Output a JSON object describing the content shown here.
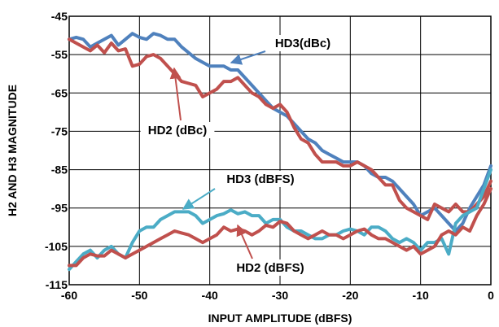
{
  "chart_data": {
    "type": "line",
    "title": "",
    "xlabel": "INPUT AMPLITUDE (dBFS)",
    "ylabel": "H2 AND H3 MAGNITUDE",
    "xlim": [
      -60,
      0
    ],
    "ylim": [
      -115,
      -45
    ],
    "x_ticks": [
      "-60",
      "-50",
      "-40",
      "-30",
      "-20",
      "-10",
      "0"
    ],
    "y_ticks": [
      "-45",
      "-55",
      "-65",
      "-75",
      "-85",
      "-95",
      "-105",
      "-115"
    ],
    "grid": true,
    "series": [
      {
        "name": "HD3(dBc)",
        "color": "#4f81bd",
        "points": [
          [
            -60,
            -51
          ],
          [
            -59,
            -50.5
          ],
          [
            -58,
            -51
          ],
          [
            -57,
            -53
          ],
          [
            -56,
            -52
          ],
          [
            -55,
            -51
          ],
          [
            -54,
            -50
          ],
          [
            -53,
            -52.5
          ],
          [
            -52,
            -51
          ],
          [
            -51,
            -49.5
          ],
          [
            -50,
            -50.5
          ],
          [
            -49,
            -51
          ],
          [
            -48,
            -49.5
          ],
          [
            -47,
            -50
          ],
          [
            -46,
            -51
          ],
          [
            -45,
            -51
          ],
          [
            -44,
            -53
          ],
          [
            -43,
            -54.5
          ],
          [
            -42,
            -56
          ],
          [
            -41,
            -57
          ],
          [
            -40,
            -58
          ],
          [
            -39,
            -58
          ],
          [
            -38,
            -58
          ],
          [
            -37,
            -59
          ],
          [
            -36,
            -59
          ],
          [
            -35,
            -61
          ],
          [
            -34,
            -63
          ],
          [
            -33,
            -65
          ],
          [
            -32,
            -67
          ],
          [
            -31,
            -69
          ],
          [
            -30,
            -70
          ],
          [
            -29,
            -71
          ],
          [
            -28,
            -73
          ],
          [
            -27,
            -75
          ],
          [
            -26,
            -77
          ],
          [
            -25,
            -78
          ],
          [
            -24,
            -80
          ],
          [
            -23,
            -81
          ],
          [
            -22,
            -82
          ],
          [
            -21,
            -83
          ],
          [
            -20,
            -83
          ],
          [
            -19,
            -83
          ],
          [
            -18,
            -84
          ],
          [
            -17,
            -86
          ],
          [
            -16,
            -87
          ],
          [
            -15,
            -87
          ],
          [
            -14,
            -88
          ],
          [
            -13,
            -90
          ],
          [
            -12,
            -92
          ],
          [
            -11,
            -94
          ],
          [
            -10,
            -97
          ],
          [
            -9,
            -96
          ],
          [
            -8,
            -95
          ],
          [
            -7,
            -97
          ],
          [
            -6,
            -99
          ],
          [
            -5,
            -101
          ],
          [
            -4,
            -99
          ],
          [
            -3,
            -95
          ],
          [
            -2,
            -92
          ],
          [
            -1,
            -89
          ],
          [
            0,
            -84
          ]
        ]
      },
      {
        "name": "HD2 (dBc)",
        "color": "#c0504d",
        "points": [
          [
            -60,
            -51
          ],
          [
            -59,
            -52
          ],
          [
            -58,
            -53
          ],
          [
            -57,
            -54
          ],
          [
            -56,
            -52.5
          ],
          [
            -55,
            -54.5
          ],
          [
            -54,
            -52
          ],
          [
            -53,
            -54
          ],
          [
            -52,
            -53.5
          ],
          [
            -51,
            -58
          ],
          [
            -50,
            -57.5
          ],
          [
            -49,
            -55.5
          ],
          [
            -48,
            -55
          ],
          [
            -47,
            -56
          ],
          [
            -46,
            -58
          ],
          [
            -45,
            -60
          ],
          [
            -44,
            -62
          ],
          [
            -43,
            -62.5
          ],
          [
            -42,
            -63
          ],
          [
            -41,
            -66
          ],
          [
            -40,
            -65
          ],
          [
            -39,
            -64
          ],
          [
            -38,
            -62
          ],
          [
            -37,
            -62
          ],
          [
            -36,
            -61
          ],
          [
            -35,
            -63
          ],
          [
            -34,
            -65
          ],
          [
            -33,
            -66
          ],
          [
            -32,
            -68
          ],
          [
            -31,
            -69
          ],
          [
            -30,
            -68
          ],
          [
            -29,
            -70
          ],
          [
            -28,
            -74
          ],
          [
            -27,
            -77
          ],
          [
            -26,
            -78
          ],
          [
            -25,
            -81
          ],
          [
            -24,
            -83
          ],
          [
            -23,
            -83
          ],
          [
            -22,
            -83
          ],
          [
            -21,
            -84
          ],
          [
            -20,
            -84
          ],
          [
            -19,
            -83
          ],
          [
            -18,
            -84
          ],
          [
            -17,
            -85
          ],
          [
            -16,
            -87
          ],
          [
            -15,
            -89
          ],
          [
            -14,
            -89
          ],
          [
            -13,
            -93
          ],
          [
            -12,
            -95
          ],
          [
            -11,
            -96
          ],
          [
            -10,
            -97
          ],
          [
            -9,
            -98
          ],
          [
            -8,
            -94
          ],
          [
            -7,
            -95
          ],
          [
            -6,
            -96
          ],
          [
            -5,
            -94
          ],
          [
            -4,
            -96
          ],
          [
            -3,
            -96
          ],
          [
            -2,
            -94
          ],
          [
            -1,
            -92
          ],
          [
            0,
            -88
          ]
        ]
      },
      {
        "name": "HD3 (dBFS)",
        "color": "#4bacc6",
        "points": [
          [
            -60,
            -111
          ],
          [
            -59,
            -109
          ],
          [
            -58,
            -107
          ],
          [
            -57,
            -106
          ],
          [
            -56,
            -108
          ],
          [
            -55,
            -106
          ],
          [
            -54,
            -105
          ],
          [
            -53,
            -107
          ],
          [
            -52,
            -108
          ],
          [
            -51,
            -104
          ],
          [
            -50,
            -101
          ],
          [
            -49,
            -100
          ],
          [
            -48,
            -100
          ],
          [
            -47,
            -98
          ],
          [
            -46,
            -97
          ],
          [
            -45,
            -96
          ],
          [
            -44,
            -96
          ],
          [
            -43,
            -96
          ],
          [
            -42,
            -97
          ],
          [
            -41,
            -99
          ],
          [
            -40,
            -98
          ],
          [
            -39,
            -97
          ],
          [
            -38,
            -96.5
          ],
          [
            -37,
            -95.5
          ],
          [
            -36,
            -96.5
          ],
          [
            -35,
            -96
          ],
          [
            -34,
            -97
          ],
          [
            -33,
            -97
          ],
          [
            -32,
            -99
          ],
          [
            -31,
            -98
          ],
          [
            -30,
            -98
          ],
          [
            -29,
            -100
          ],
          [
            -28,
            -101
          ],
          [
            -27,
            -101
          ],
          [
            -26,
            -102
          ],
          [
            -25,
            -103
          ],
          [
            -24,
            -103
          ],
          [
            -23,
            -102
          ],
          [
            -22,
            -102
          ],
          [
            -21,
            -101
          ],
          [
            -20,
            -100.5
          ],
          [
            -19,
            -101
          ],
          [
            -18,
            -102
          ],
          [
            -17,
            -100
          ],
          [
            -16,
            -100
          ],
          [
            -15,
            -101
          ],
          [
            -14,
            -103
          ],
          [
            -13,
            -104
          ],
          [
            -12,
            -103
          ],
          [
            -11,
            -104
          ],
          [
            -10,
            -106
          ],
          [
            -9,
            -104
          ],
          [
            -8,
            -104
          ],
          [
            -7,
            -103
          ],
          [
            -6,
            -107
          ],
          [
            -5,
            -99
          ],
          [
            -4,
            -97
          ],
          [
            -3,
            -96
          ],
          [
            -2,
            -95
          ],
          [
            -1,
            -90
          ],
          [
            0,
            -85
          ]
        ]
      },
      {
        "name": "HD2 (dBFS)",
        "color": "#c0504d",
        "points": [
          [
            -60,
            -110
          ],
          [
            -59,
            -110
          ],
          [
            -58,
            -108
          ],
          [
            -57,
            -107
          ],
          [
            -56,
            -107.5
          ],
          [
            -55,
            -107.5
          ],
          [
            -54,
            -106
          ],
          [
            -53,
            -107
          ],
          [
            -52,
            -108
          ],
          [
            -51,
            -107
          ],
          [
            -50,
            -106
          ],
          [
            -49,
            -105
          ],
          [
            -48,
            -104
          ],
          [
            -47,
            -103
          ],
          [
            -46,
            -102
          ],
          [
            -45,
            -101
          ],
          [
            -44,
            -101.5
          ],
          [
            -43,
            -102
          ],
          [
            -42,
            -103
          ],
          [
            -41,
            -104
          ],
          [
            -40,
            -103
          ],
          [
            -39,
            -102
          ],
          [
            -38,
            -100
          ],
          [
            -37,
            -101
          ],
          [
            -36,
            -100.5
          ],
          [
            -35,
            -101
          ],
          [
            -34,
            -102
          ],
          [
            -33,
            -101
          ],
          [
            -32,
            -99.5
          ],
          [
            -31,
            -100
          ],
          [
            -30,
            -98.5
          ],
          [
            -29,
            -99
          ],
          [
            -28,
            -101
          ],
          [
            -27,
            -102
          ],
          [
            -26,
            -103
          ],
          [
            -25,
            -102
          ],
          [
            -24,
            -101
          ],
          [
            -23,
            -102
          ],
          [
            -22,
            -102
          ],
          [
            -21,
            -103
          ],
          [
            -20,
            -102
          ],
          [
            -19,
            -101
          ],
          [
            -18,
            -100.5
          ],
          [
            -17,
            -102
          ],
          [
            -16,
            -103
          ],
          [
            -15,
            -103
          ],
          [
            -14,
            -104
          ],
          [
            -13,
            -105
          ],
          [
            -12,
            -106
          ],
          [
            -11,
            -105
          ],
          [
            -10,
            -107
          ],
          [
            -9,
            -106
          ],
          [
            -8,
            -105
          ],
          [
            -7,
            -102
          ],
          [
            -6,
            -101
          ],
          [
            -5,
            -102
          ],
          [
            -4,
            -100
          ],
          [
            -3,
            -101
          ],
          [
            -2,
            -97
          ],
          [
            -1,
            -94
          ],
          [
            0,
            -90
          ]
        ]
      }
    ],
    "annotations": [
      {
        "label": "HD3(dBc)",
        "series": 0
      },
      {
        "label": "HD2 (dBc)",
        "series": 1
      },
      {
        "label": "HD3 (dBFS)",
        "series": 2
      },
      {
        "label": "HD2 (dBFS)",
        "series": 3
      }
    ]
  }
}
